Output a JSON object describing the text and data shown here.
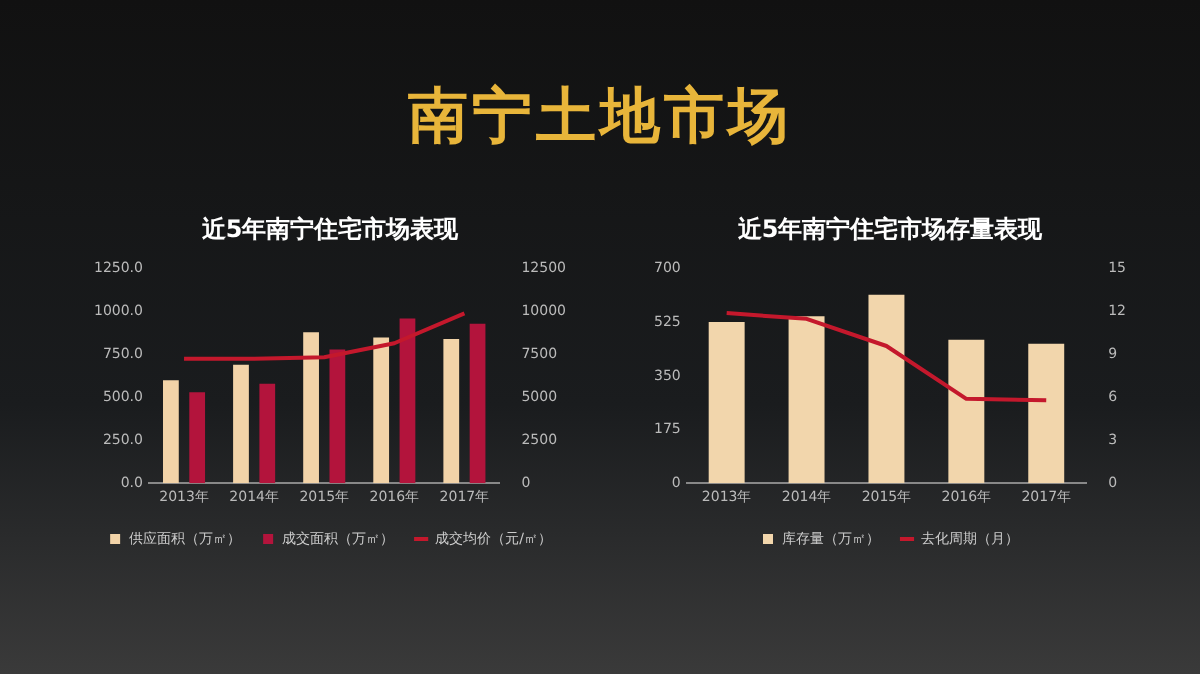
{
  "chart_data": [
    {
      "type": "other",
      "title": "南宁土地市场"
    },
    {
      "type": "bar",
      "title": "近5年南宁住宅市场表现",
      "categories": [
        "2013年",
        "2014年",
        "2015年",
        "2016年",
        "2017年"
      ],
      "series": [
        {
          "name": "供应面积（万㎡）",
          "color": "#f2d3a8",
          "values": [
            600,
            690,
            880,
            850,
            840
          ]
        },
        {
          "name": "成交面积（万㎡）",
          "color": "#b3143c",
          "values": [
            530,
            580,
            780,
            960,
            930
          ]
        },
        {
          "name": "成交均价（元/㎡）",
          "type": "line",
          "axis": "y2",
          "color": "#c4182c",
          "values": [
            7250,
            7250,
            7340,
            8160,
            9900
          ]
        }
      ],
      "ylim": [
        0,
        1250
      ],
      "yticks": [
        {
          "value": 0,
          "label": "0.0"
        },
        {
          "value": 250,
          "label": "250.0"
        },
        {
          "value": 500,
          "label": "500.0"
        },
        {
          "value": 750,
          "label": "750.0"
        },
        {
          "value": 1000,
          "label": "1000.0"
        },
        {
          "value": 1250,
          "label": "1250.0"
        }
      ],
      "y2lim": [
        0,
        12500
      ],
      "y2ticks": [
        0,
        2500,
        5000,
        7500,
        10000,
        12500
      ],
      "grid": false,
      "legend": "bottom",
      "marker": "none",
      "line_style": "solid"
    },
    {
      "type": "bar",
      "title": "近5年南宁住宅市场存量表现",
      "categories": [
        "2013年",
        "2014年",
        "2015年",
        "2016年",
        "2017年"
      ],
      "series": [
        {
          "name": "库存量（万㎡）",
          "color": "#f2d6ac",
          "values": [
            526,
            545,
            615,
            468,
            455
          ]
        },
        {
          "name": "去化周期（月）",
          "type": "line",
          "axis": "y2",
          "color": "#c4182c",
          "values": [
            11.9,
            11.5,
            9.6,
            5.9,
            5.8
          ]
        }
      ],
      "ylim": [
        0,
        700
      ],
      "yticks": [
        0,
        175,
        350,
        525,
        700
      ],
      "y2lim": [
        0,
        15
      ],
      "y2ticks": [
        0,
        3,
        6,
        9,
        12,
        15
      ],
      "grid": false,
      "legend": "bottom",
      "marker": "none",
      "line_style": "solid"
    }
  ]
}
